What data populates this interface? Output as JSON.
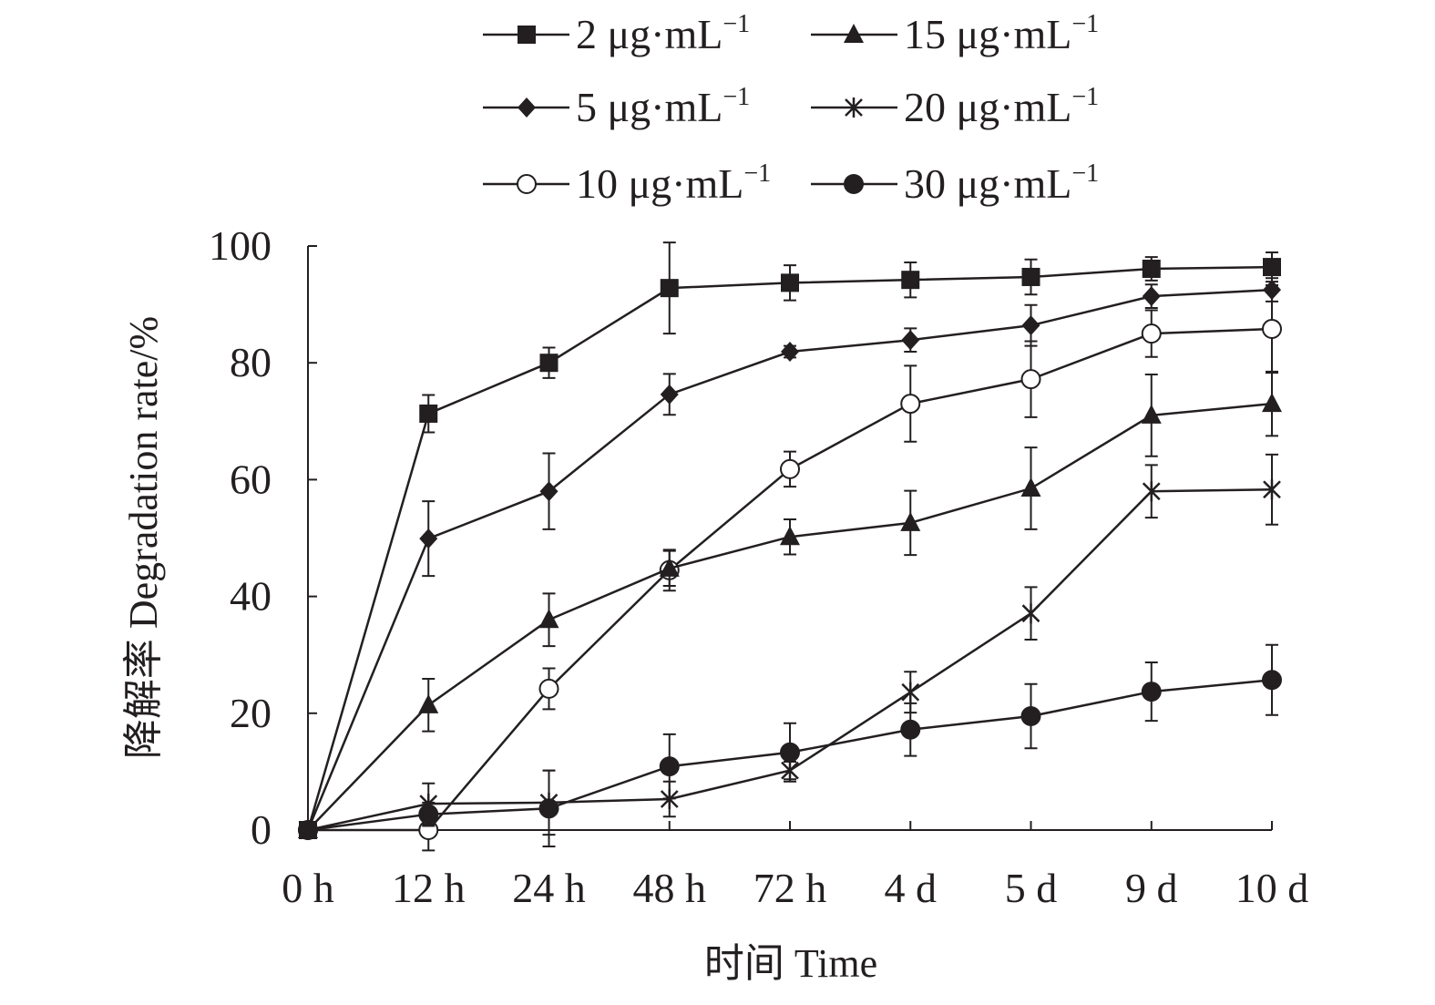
{
  "chart_data": {
    "type": "line",
    "title": "",
    "xlabel": "时间 Time",
    "ylabel": "降解率 Degradation rate/%",
    "ylim": [
      0,
      100
    ],
    "yticks": [
      "0",
      "20",
      "40",
      "60",
      "80",
      "100"
    ],
    "categories": [
      "0 h",
      "12 h",
      "24 h",
      "48 h",
      "72 h",
      "4 d",
      "5 d",
      "9 d",
      "10 d"
    ],
    "legend_position": "top",
    "unit_base": "μg·mL",
    "unit_exp": "−1",
    "series": [
      {
        "name": "2",
        "marker": "square",
        "values": [
          0,
          71.3,
          80.0,
          92.8,
          93.7,
          94.2,
          94.7,
          96.1,
          96.4
        ],
        "errors": [
          0,
          3.2,
          2.6,
          7.8,
          3.0,
          3.0,
          3.0,
          2.0,
          2.5
        ]
      },
      {
        "name": "5",
        "marker": "diamond",
        "values": [
          0,
          49.9,
          58.0,
          74.6,
          81.9,
          83.9,
          86.4,
          91.4,
          92.5
        ],
        "errors": [
          0,
          6.4,
          6.5,
          3.5,
          1.0,
          2.0,
          3.5,
          2.0,
          2.0
        ]
      },
      {
        "name": "10",
        "marker": "open-circle",
        "values": [
          0,
          0,
          24.2,
          44.5,
          61.8,
          73.0,
          77.2,
          85.0,
          85.8
        ],
        "errors": [
          0,
          3.5,
          3.5,
          3.5,
          3.0,
          6.5,
          6.5,
          4.0,
          7.5
        ]
      },
      {
        "name": "15",
        "marker": "triangle",
        "values": [
          0,
          21.4,
          36.0,
          44.8,
          50.2,
          52.6,
          58.5,
          71.0,
          73.0
        ],
        "errors": [
          0,
          4.5,
          4.5,
          3.0,
          3.0,
          5.5,
          7.0,
          7.0,
          5.5
        ]
      },
      {
        "name": "20",
        "marker": "asterisk",
        "values": [
          0,
          4.5,
          4.7,
          5.3,
          10.2,
          23.6,
          37.1,
          58.0,
          58.3
        ],
        "errors": [
          0,
          3.5,
          5.5,
          3.0,
          1.5,
          3.5,
          4.5,
          4.5,
          6.0
        ]
      },
      {
        "name": "30",
        "marker": "filled-circle",
        "values": [
          0,
          2.7,
          3.7,
          10.9,
          13.3,
          17.2,
          19.5,
          23.7,
          25.7
        ],
        "errors": [
          0,
          2.0,
          6.5,
          5.5,
          5.0,
          4.5,
          5.5,
          5.0,
          6.0
        ]
      }
    ]
  }
}
